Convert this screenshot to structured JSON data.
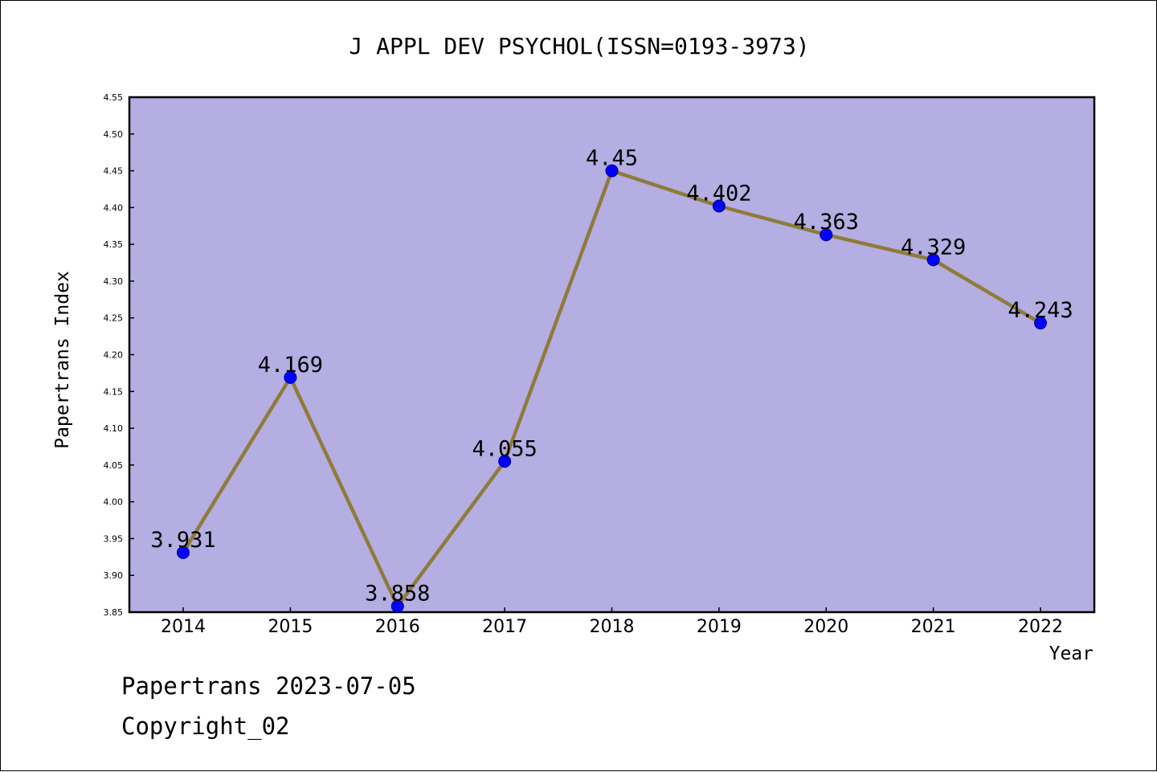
{
  "chart_data": {
    "type": "line",
    "title": "J APPL DEV PSYCHOL(ISSN=0193-3973)",
    "xlabel": "Year",
    "ylabel": "Papertrans Index",
    "categories": [
      "2014",
      "2015",
      "2016",
      "2017",
      "2018",
      "2019",
      "2020",
      "2021",
      "2022"
    ],
    "values": [
      3.931,
      4.169,
      3.858,
      4.055,
      4.45,
      4.402,
      4.363,
      4.329,
      4.243
    ],
    "data_labels": [
      "3.931",
      "4.169",
      "3.858",
      "4.055",
      "4.45",
      "4.402",
      "4.363",
      "4.329",
      "4.243"
    ],
    "ylim": [
      3.85,
      4.55
    ],
    "y_ticks": [
      "3.85",
      "3.90",
      "3.95",
      "4.00",
      "4.05",
      "4.10",
      "4.15",
      "4.20",
      "4.25",
      "4.30",
      "4.35",
      "4.40",
      "4.45",
      "4.50",
      "4.55"
    ],
    "grid": false,
    "legend": "none",
    "colors": {
      "plot_background": "#b4aee2",
      "line": "#8f7b3a",
      "marker": "#0000ff",
      "marker_edge": "#00008b"
    }
  },
  "footer": {
    "line1": "Papertrans 2023-07-05",
    "line2": "Copyright_02"
  }
}
